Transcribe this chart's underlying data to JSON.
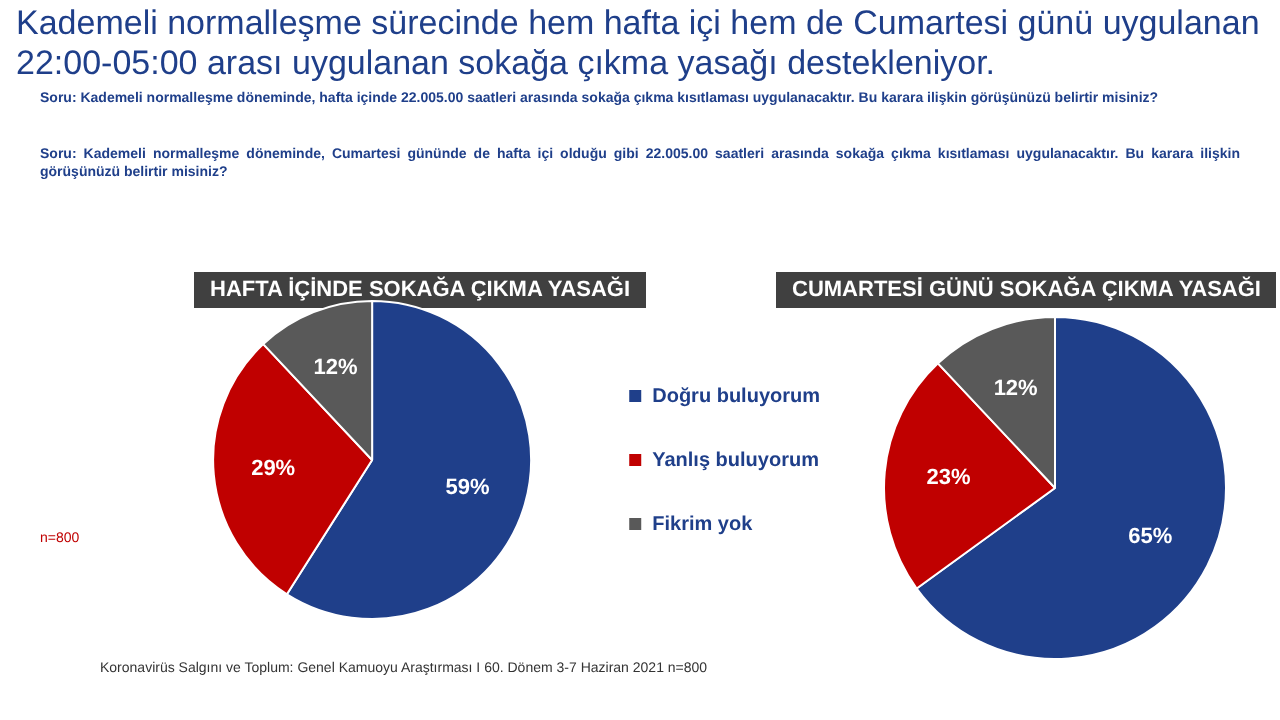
{
  "chart_data": [
    {
      "type": "pie",
      "title": "HAFTA İÇİNDE  SOKAĞA ÇIKMA YASAĞI",
      "categories": [
        "Doğru buluyorum",
        "Yanlış buluyorum",
        "Fikrim yok"
      ],
      "values": [
        59,
        29,
        12
      ],
      "colors": [
        "#1f3f8a",
        "#c00000",
        "#595959"
      ],
      "value_labels": [
        "59%",
        "29%",
        "12%"
      ],
      "legend": "right",
      "annotations": [
        "Kademeli normalleşme sürecinde hem hafta içi hem de Cumartesi günü uygulanan 22:00-05:00 arası uygulanan sokağa çıkma yasağı destekleniyor.",
        "Soru: Kademeli normalleşme döneminde, hafta içinde 22.005.00  saatleri arasında sokağa çıkma kısıtlaması uygulanacaktır.  Bu karara ilişkin görüşünüzü belirtir misiniz?",
        "Soru: Kademeli normalleşme döneminde, Cumartesi gününde de hafta içi olduğu gibi 22.005.00  saatleri arasında sokağa çıkma kısıtlaması uygulanacaktır.  Bu karara ilişkin görüşünüzü belirtir misiniz?",
        "n=800",
        "Koronavirüs Salgını ve Toplum: Genel Kamuoyu Araştırması I 60. Dönem 3-7 Haziran 2021  n=800"
      ]
    },
    {
      "type": "pie",
      "title": "CUMARTESİ GÜNÜ  SOKAĞA ÇIKMA YASAĞI",
      "categories": [
        null,
        null,
        null
      ],
      "values": [
        65,
        23,
        12
      ],
      "colors": [
        "#1f3f8a",
        "#c00000",
        "#595959"
      ],
      "value_labels": [
        "65%",
        "23%",
        "12%"
      ],
      "legend": false
    }
  ]
}
